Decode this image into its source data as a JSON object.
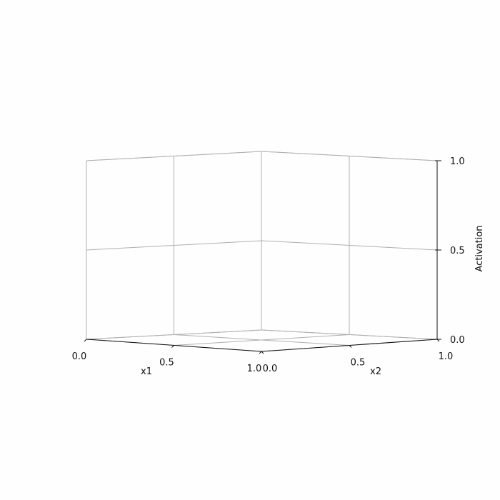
{
  "chart_data": {
    "type": "surface",
    "projection": "3d",
    "title": "",
    "xlabel": "x1",
    "ylabel": "x2",
    "zlabel": "Activation",
    "xlim": [
      0.0,
      1.0
    ],
    "ylim": [
      0.0,
      1.0
    ],
    "zlim": [
      0.0,
      1.0
    ],
    "xticks": [
      "0.0",
      "0.5",
      "1.0"
    ],
    "yticks": [
      "0.0",
      "0.5",
      "1.0"
    ],
    "zticks": [
      "0.0",
      "0.5",
      "1.0"
    ],
    "grid": true,
    "series": []
  },
  "colors": {
    "grid": "#b0b0b0",
    "axis": "#111111",
    "background": "#fefefe"
  }
}
